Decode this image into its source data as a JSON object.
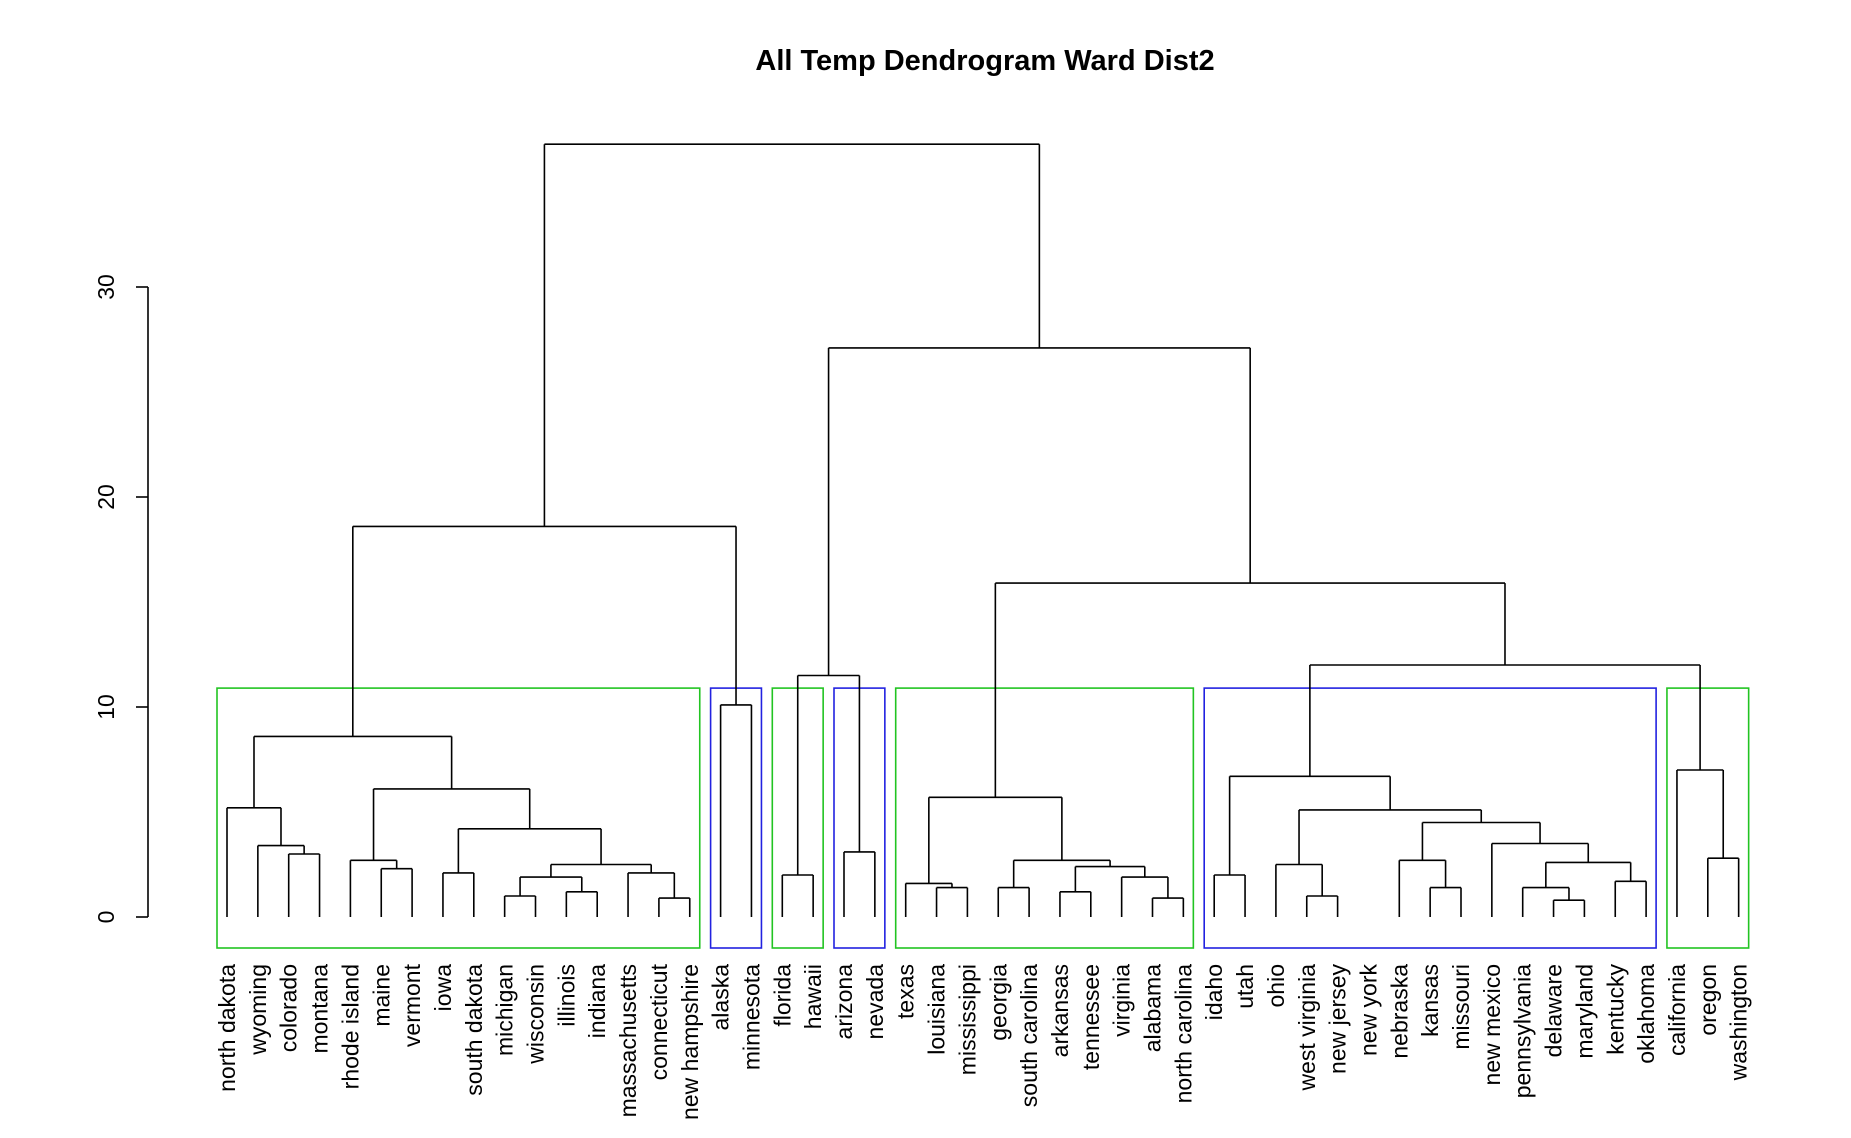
{
  "chart_data": {
    "type": "dendrogram",
    "title": "All Temp Dendrogram Ward Dist2",
    "ylabel": "",
    "xlabel": "",
    "ylim": [
      0,
      36
    ],
    "yticks": [
      0,
      10,
      20,
      30
    ],
    "leaves": [
      "north dakota",
      "wyoming",
      "colorado",
      "montana",
      "rhode island",
      "maine",
      "vermont",
      "iowa",
      "south dakota",
      "michigan",
      "wisconsin",
      "illinois",
      "indiana",
      "massachusetts",
      "connecticut",
      "new hampshire",
      "alaska",
      "minnesota",
      "florida",
      "hawaii",
      "arizona",
      "nevada",
      "texas",
      "louisiana",
      "mississippi",
      "georgia",
      "south carolina",
      "arkansas",
      "tennessee",
      "virginia",
      "alabama",
      "north carolina",
      "idaho",
      "utah",
      "ohio",
      "west virginia",
      "new jersey",
      "new york",
      "nebraska",
      "kansas",
      "missouri",
      "new mexico",
      "pennsylvania",
      "delaware",
      "maryland",
      "kentucky",
      "oklahoma",
      "california",
      "oregon",
      "washington"
    ],
    "merges": [
      {
        "left": "l0",
        "right": "l1",
        "height": 5.2,
        "id": "n1"
      }
    ],
    "tree": {
      "h": 36.8,
      "c": [
        {
          "h": 18.6,
          "c": [
            {
              "h": 8.6,
              "c": [
                {
                  "h": 5.2,
                  "c": [
                    {
                      "leaf": 0
                    },
                    {
                      "h": 3.4,
                      "c": [
                        {
                          "leaf": 1
                        },
                        {
                          "h": 3.0,
                          "c": [
                            {
                              "leaf": 2
                            },
                            {
                              "leaf": 3
                            }
                          ]
                        }
                      ]
                    }
                  ]
                },
                {
                  "h": 6.1,
                  "c": [
                    {
                      "h": 2.7,
                      "c": [
                        {
                          "leaf": 4
                        },
                        {
                          "h": 2.3,
                          "c": [
                            {
                              "leaf": 5
                            },
                            {
                              "leaf": 6
                            }
                          ]
                        }
                      ]
                    },
                    {
                      "h": 4.2,
                      "c": [
                        {
                          "h": 2.1,
                          "c": [
                            {
                              "leaf": 7
                            },
                            {
                              "leaf": 8
                            }
                          ]
                        },
                        {
                          "h": 2.5,
                          "c": [
                            {
                              "h": 1.9,
                              "c": [
                                {
                                  "h": 1.0,
                                  "c": [
                                    {
                                      "leaf": 9
                                    },
                                    {
                                      "leaf": 10
                                    }
                                  ]
                                },
                                {
                                  "h": 1.2,
                                  "c": [
                                    {
                                      "leaf": 11
                                    },
                                    {
                                      "leaf": 12
                                    }
                                  ]
                                }
                              ]
                            },
                            {
                              "h": 2.1,
                              "c": [
                                {
                                  "leaf": 13
                                },
                                {
                                  "h": 0.9,
                                  "c": [
                                    {
                                      "leaf": 14
                                    },
                                    {
                                      "leaf": 15
                                    }
                                  ]
                                }
                              ]
                            }
                          ]
                        }
                      ]
                    }
                  ]
                }
              ]
            },
            {
              "h": 10.1,
              "c": [
                {
                  "leaf": 16
                },
                {
                  "leaf": 17
                }
              ]
            }
          ]
        },
        {
          "h": 27.1,
          "c": [
            {
              "h": 11.5,
              "c": [
                {
                  "h": 2.0,
                  "c": [
                    {
                      "leaf": 18
                    },
                    {
                      "leaf": 19
                    }
                  ]
                },
                {
                  "h": 3.1,
                  "c": [
                    {
                      "leaf": 20
                    },
                    {
                      "leaf": 21
                    }
                  ]
                }
              ]
            },
            {
              "h": 15.9,
              "c": [
                {
                  "h": 5.7,
                  "c": [
                    {
                      "h": 1.6,
                      "c": [
                        {
                          "leaf": 22
                        },
                        {
                          "h": 1.4,
                          "c": [
                            {
                              "leaf": 23
                            },
                            {
                              "leaf": 24
                            }
                          ]
                        }
                      ]
                    },
                    {
                      "h": 2.7,
                      "c": [
                        {
                          "h": 1.4,
                          "c": [
                            {
                              "leaf": 25
                            },
                            {
                              "leaf": 26
                            }
                          ]
                        },
                        {
                          "h": 2.4,
                          "c": [
                            {
                              "h": 1.2,
                              "c": [
                                {
                                  "leaf": 27
                                },
                                {
                                  "leaf": 28
                                }
                              ]
                            },
                            {
                              "h": 1.9,
                              "c": [
                                {
                                  "leaf": 29
                                },
                                {
                                  "h": 0.9,
                                  "c": [
                                    {
                                      "leaf": 30
                                    },
                                    {
                                      "leaf": 31
                                    }
                                  ]
                                }
                              ]
                            }
                          ]
                        }
                      ]
                    }
                  ]
                },
                {
                  "h": 12.0,
                  "c": [
                    {
                      "h": 6.7,
                      "c": [
                        {
                          "h": 2.0,
                          "c": [
                            {
                              "leaf": 32
                            },
                            {
                              "leaf": 33
                            }
                          ]
                        },
                        {
                          "h": 5.1,
                          "c": [
                            {
                              "h": 2.5,
                              "c": [
                                {
                                  "leaf": 34
                                },
                                {
                                  "h": 1.0,
                                  "c": [
                                    {
                                      "leaf": 35
                                    }
                                  ]
                                }
                              ]
                            },
                            {
                              "h": 4.5,
                              "c": [
                                {
                                  "h": 2.7,
                                  "c": [
                                    {
                                      "leaf": 38
                                    },
                                    {
                                      "h": 1.4,
                                      "c": [
                                        {
                                          "leaf": 39
                                        },
                                        {
                                          "leaf": 40
                                        }
                                      ]
                                    }
                                  ]
                                },
                                {
                                  "h": 3.5,
                                  "c": [
                                    {
                                      "leaf": 41
                                    },
                                    {
                                      "h": 2.6,
                                      "c": [
                                        {
                                          "h": 1.4,
                                          "c": [
                                            {
                                              "leaf": 42
                                            },
                                            {
                                              "h": 0.8,
                                              "c": [
                                                {
                                                  "leaf": 43
                                                },
                                                {
                                                  "leaf": 44
                                                }
                                              ]
                                            }
                                          ]
                                        },
                                        {
                                          "h": 1.7,
                                          "c": [
                                            {
                                              "leaf": 45
                                            },
                                            {
                                              "leaf": 46
                                            }
                                          ]
                                        }
                                      ]
                                    }
                                  ]
                                }
                              ]
                            }
                          ]
                        }
                      ]
                    },
                    {
                      "h": 7.0,
                      "c": [
                        {
                          "leaf": 47
                        },
                        {
                          "h": 2.8,
                          "c": [
                            {
                              "leaf": 48
                            },
                            {
                              "leaf": 49
                            }
                          ]
                        }
                      ]
                    }
                  ]
                }
              ]
            }
          ]
        }
      ]
    },
    "cut_height": 10.9,
    "clusters": [
      {
        "first": 0,
        "last": 15,
        "color": "#22c422"
      },
      {
        "first": 16,
        "last": 17,
        "color": "#2222e0"
      },
      {
        "first": 18,
        "last": 19,
        "color": "#22c422"
      },
      {
        "first": 20,
        "last": 21,
        "color": "#2222e0"
      },
      {
        "first": 22,
        "last": 31,
        "color": "#22c422"
      },
      {
        "first": 32,
        "last": 46,
        "color": "#2222e0"
      },
      {
        "first": 47,
        "last": 49,
        "color": "#22c422"
      }
    ]
  }
}
